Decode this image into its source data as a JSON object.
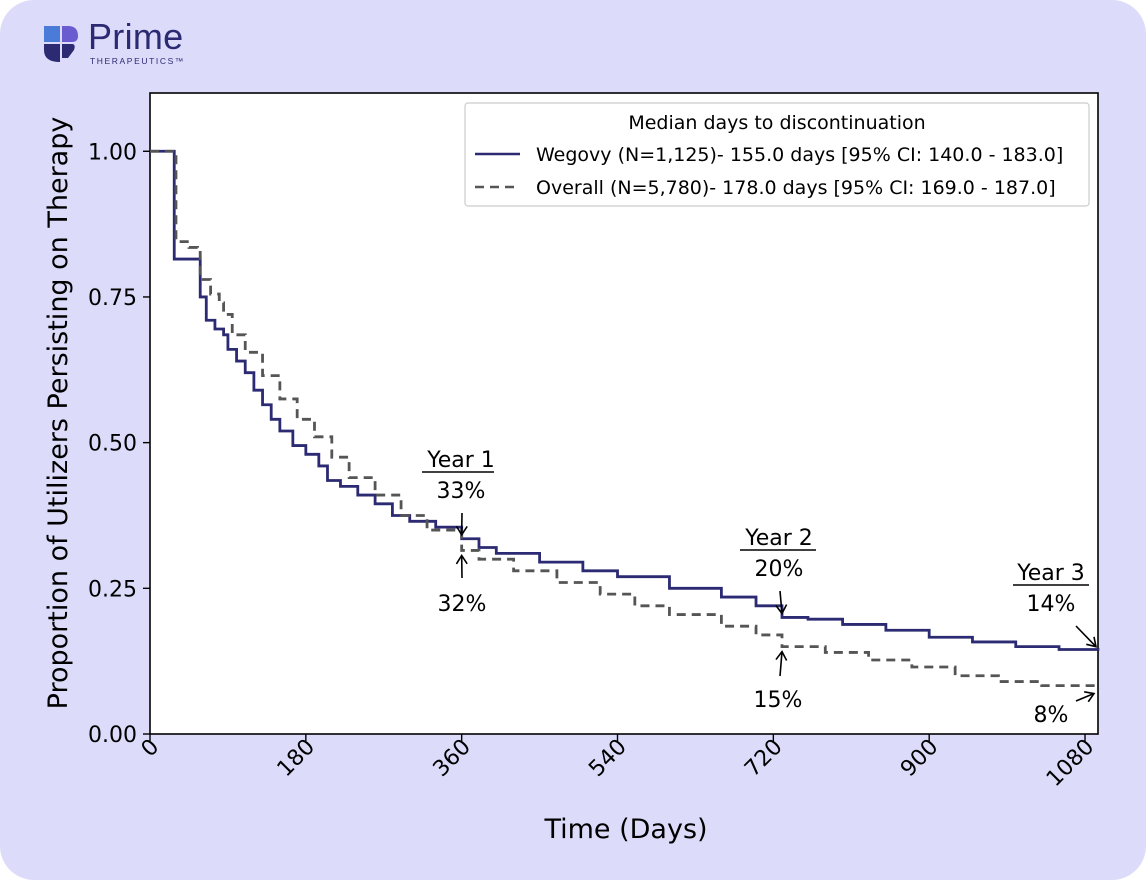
{
  "brand": {
    "name": "Prime",
    "subtitle": "THERAPEUTICS™",
    "colors": {
      "navy": "#2b2a72",
      "blue": "#4a7bd8",
      "purple": "#6b5bd0",
      "background": "#dcdcfa"
    }
  },
  "chart_data": {
    "type": "line",
    "title": "",
    "xlabel": "Time (Days)",
    "ylabel": "Proportion of Utilizers Persisting on Therapy",
    "xlim": [
      0,
      1095
    ],
    "ylim": [
      0,
      1.1
    ],
    "x_ticks": [
      0,
      180,
      360,
      540,
      720,
      900,
      1080
    ],
    "y_ticks": [
      "0.00",
      "0.25",
      "0.50",
      "0.75",
      "1.00"
    ],
    "grid": false,
    "legend": {
      "title": "Median days to discontinuation",
      "placement": "top-right"
    },
    "series": [
      {
        "name": "Wegovy (N=1,125)- 155.0 days [95% CI: 140.0 - 183.0]",
        "color": "#2b2a72",
        "style": "solid",
        "points": [
          [
            0,
            1.0
          ],
          [
            28,
            0.995
          ],
          [
            28,
            0.815
          ],
          [
            55,
            0.815
          ],
          [
            55,
            0.815
          ],
          [
            58,
            0.75
          ],
          [
            65,
            0.71
          ],
          [
            75,
            0.695
          ],
          [
            85,
            0.685
          ],
          [
            90,
            0.66
          ],
          [
            100,
            0.64
          ],
          [
            110,
            0.62
          ],
          [
            120,
            0.59
          ],
          [
            130,
            0.565
          ],
          [
            140,
            0.54
          ],
          [
            150,
            0.52
          ],
          [
            165,
            0.495
          ],
          [
            180,
            0.48
          ],
          [
            195,
            0.46
          ],
          [
            205,
            0.435
          ],
          [
            220,
            0.425
          ],
          [
            240,
            0.41
          ],
          [
            260,
            0.395
          ],
          [
            280,
            0.375
          ],
          [
            300,
            0.365
          ],
          [
            330,
            0.355
          ],
          [
            360,
            0.335
          ],
          [
            380,
            0.32
          ],
          [
            400,
            0.31
          ],
          [
            450,
            0.295
          ],
          [
            500,
            0.28
          ],
          [
            540,
            0.27
          ],
          [
            600,
            0.25
          ],
          [
            660,
            0.235
          ],
          [
            700,
            0.22
          ],
          [
            730,
            0.2
          ],
          [
            760,
            0.197
          ],
          [
            800,
            0.188
          ],
          [
            850,
            0.178
          ],
          [
            900,
            0.166
          ],
          [
            950,
            0.158
          ],
          [
            1000,
            0.15
          ],
          [
            1050,
            0.145
          ],
          [
            1095,
            0.143
          ]
        ]
      },
      {
        "name": "Overall (N=5,780)- 178.0 days [95% CI: 169.0 - 187.0]",
        "color": "#555555",
        "style": "dashed",
        "points": [
          [
            0,
            1.0
          ],
          [
            28,
            0.995
          ],
          [
            30,
            0.845
          ],
          [
            45,
            0.835
          ],
          [
            55,
            0.83
          ],
          [
            58,
            0.78
          ],
          [
            70,
            0.755
          ],
          [
            80,
            0.74
          ],
          [
            85,
            0.72
          ],
          [
            95,
            0.685
          ],
          [
            110,
            0.655
          ],
          [
            130,
            0.615
          ],
          [
            150,
            0.575
          ],
          [
            170,
            0.54
          ],
          [
            190,
            0.51
          ],
          [
            210,
            0.475
          ],
          [
            230,
            0.44
          ],
          [
            260,
            0.41
          ],
          [
            290,
            0.375
          ],
          [
            320,
            0.35
          ],
          [
            360,
            0.315
          ],
          [
            380,
            0.3
          ],
          [
            420,
            0.28
          ],
          [
            470,
            0.26
          ],
          [
            520,
            0.24
          ],
          [
            560,
            0.22
          ],
          [
            600,
            0.205
          ],
          [
            660,
            0.185
          ],
          [
            700,
            0.17
          ],
          [
            730,
            0.15
          ],
          [
            780,
            0.14
          ],
          [
            830,
            0.127
          ],
          [
            880,
            0.115
          ],
          [
            930,
            0.1
          ],
          [
            980,
            0.09
          ],
          [
            1030,
            0.083
          ],
          [
            1095,
            0.078
          ]
        ]
      }
    ],
    "annotations": [
      {
        "heading": "Year 1",
        "value": "33%",
        "x": 360,
        "y": 0.335,
        "lower_value": "32%",
        "lower_y": 0.315
      },
      {
        "heading": "Year 2",
        "value": "20%",
        "x": 730,
        "y": 0.2,
        "lower_value": "15%",
        "lower_y": 0.15
      },
      {
        "heading": "Year 3",
        "value": "14%",
        "x": 1095,
        "y": 0.143,
        "lower_value": "8%",
        "lower_y": 0.078
      }
    ]
  }
}
